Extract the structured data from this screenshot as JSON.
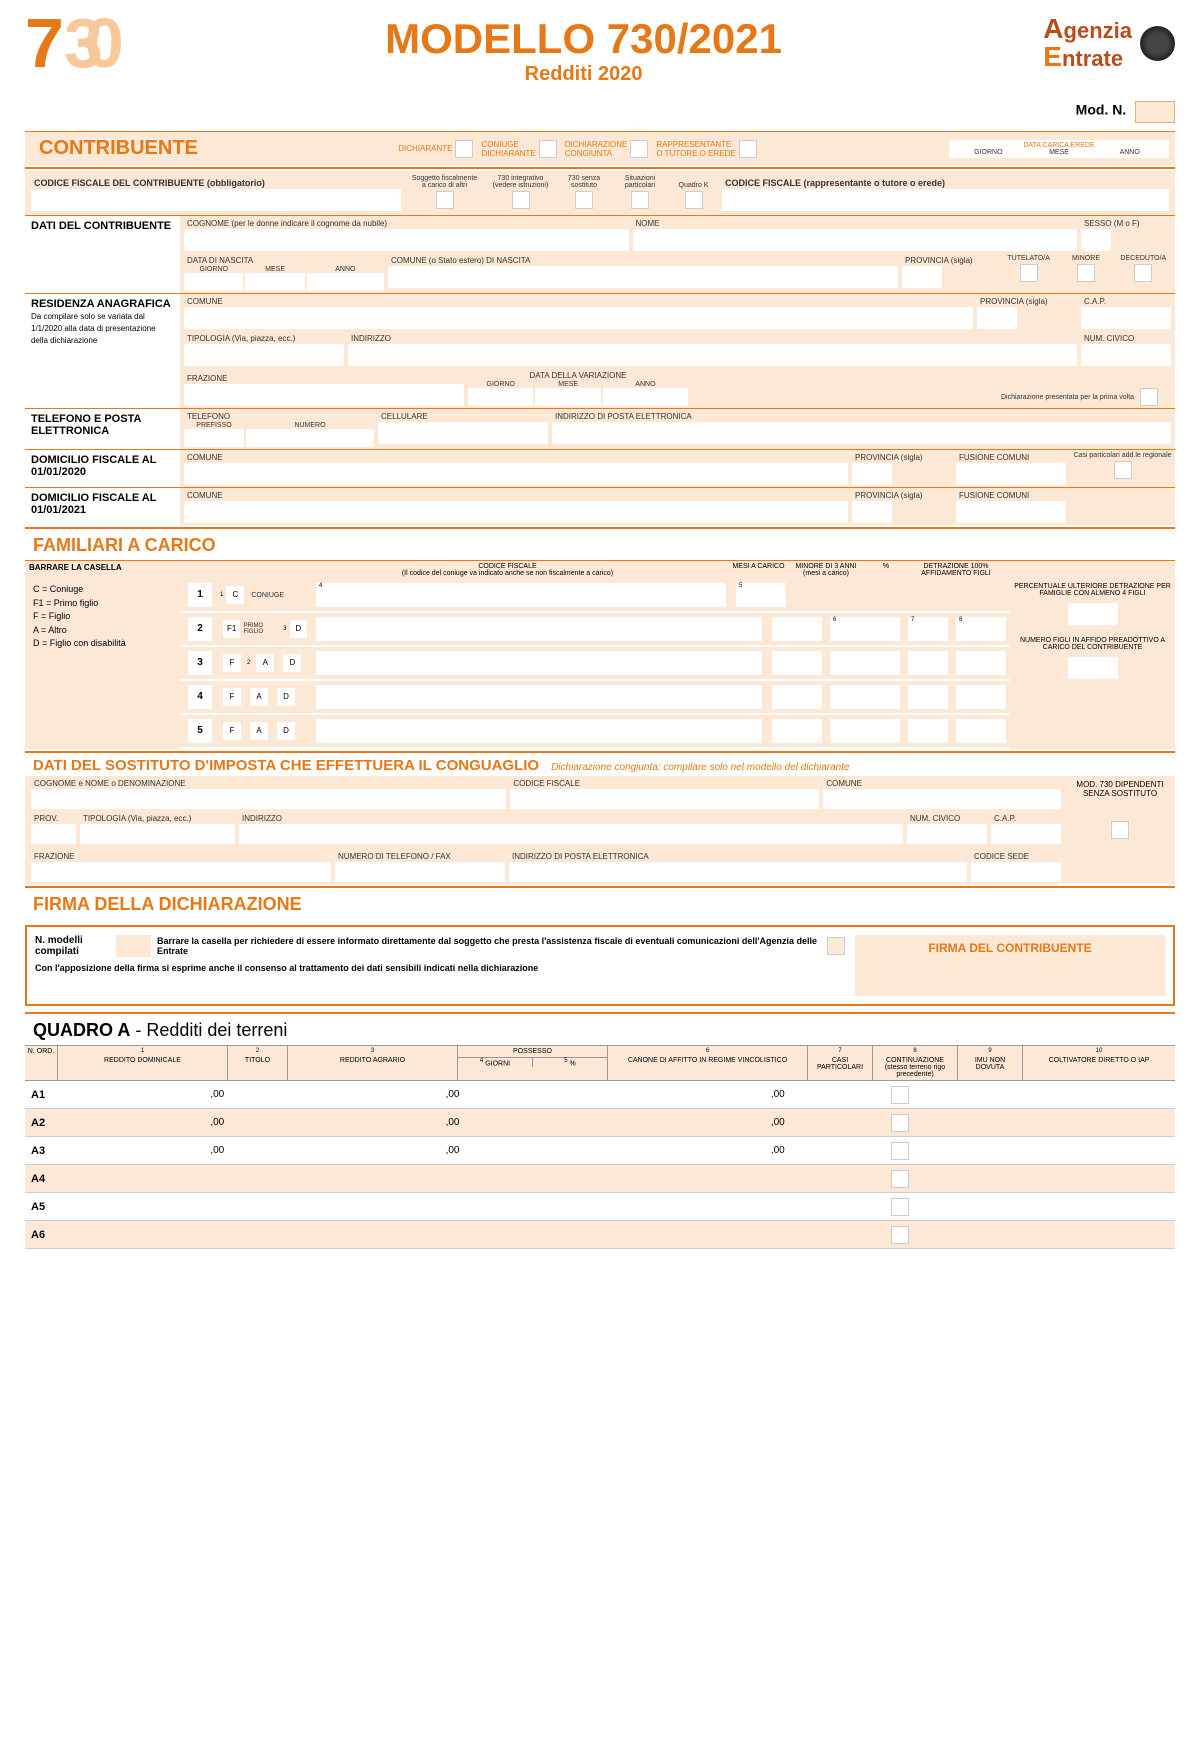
{
  "header": {
    "title": "MODELLO 730/2021",
    "subtitle": "Redditi 2020",
    "agenzia_line1": "genzia",
    "agenzia_line2": "ntrate",
    "modn_label": "Mod. N."
  },
  "contribuente": {
    "title": "CONTRIBUENTE",
    "opt1": "DICHIARANTE",
    "opt2a": "CONIUGE",
    "opt2b": "DICHIARANTE",
    "opt3a": "DICHIARAZIONE",
    "opt3b": "CONGIUNTA",
    "opt4a": "RAPPRESENTANTE",
    "opt4b": "O TUTORE O EREDE",
    "erede_title": "DATA CARICA EREDE",
    "erede_g": "GIORNO",
    "erede_m": "MESE",
    "erede_a": "ANNO"
  },
  "cf_row": {
    "label": "CODICE FISCALE DEL CONTRIBUENTE (obbligatorio)",
    "h1a": "Soggetto fiscalmente",
    "h1b": "a carico di altri",
    "h2a": "730 integrativo",
    "h2b": "(vedere istruzioni)",
    "h3a": "730 senza",
    "h3b": "sostituto",
    "h4a": "Situazioni",
    "h4b": "particolari",
    "h5": "Quadro K",
    "cf2": "CODICE FISCALE (rappresentante o tutore o erede)"
  },
  "dati": {
    "title": "DATI DEL CONTRIBUENTE",
    "cognome": "COGNOME (per le donne indicare il cognome da nubile)",
    "nome": "NOME",
    "sesso": "SESSO (M o F)",
    "nascita": "DATA DI NASCITA",
    "giorno": "GIORNO",
    "mese": "MESE",
    "anno": "ANNO",
    "comune_nascita": "COMUNE (o Stato estero) DI NASCITA",
    "provincia": "PROVINCIA (sigla)",
    "tutelato": "TUTELATO/A",
    "minore": "MINORE",
    "deceduto": "DECEDUTO/A"
  },
  "residenza": {
    "title": "RESIDENZA ANAGRAFICA",
    "sub": "Da compilare solo se variata dal 1/1/2020 alla data di presentazione della dichiarazione",
    "comune": "COMUNE",
    "prov": "PROVINCIA (sigla)",
    "cap": "C.A.P.",
    "tipologia": "TIPOLOGIA (Via, piazza, ecc.)",
    "indirizzo": "INDIRIZZO",
    "civico": "NUM. CIVICO",
    "frazione": "FRAZIONE",
    "variazione": "DATA DELLA VARIAZIONE",
    "prima_volta": "Dichiarazione presentata per la prima volta"
  },
  "telefono_title": "TELEFONO E POSTA ELETTRONICA",
  "telefono": "TELEFONO",
  "prefisso": "PREFISSO",
  "numero": "NUMERO",
  "cellulare": "CELLULARE",
  "email": "INDIRIZZO DI POSTA ELETTRONICA",
  "dom1": "DOMICILIO FISCALE AL 01/01/2020",
  "dom2": "DOMICILIO FISCALE AL 01/01/2021",
  "fusione": "FUSIONE COMUNI",
  "casi_part": "Casi particolari add.le regionale",
  "familiari": {
    "title": "FAMILIARI A CARICO",
    "barrare": "BARRARE LA CASELLA",
    "legend_c": "C  = Coniuge",
    "legend_f1": "F1 = Primo figlio",
    "legend_f": "F  = Figlio",
    "legend_a": "A  = Altro",
    "legend_d": "D  = Figlio con disabilità",
    "h_cf": "CODICE FISCALE",
    "h_cf_sub": "(Il codice del coniuge va indicato anche se non fiscalmente a carico)",
    "h_mesi": "MESI A CARICO",
    "h_minore": "MINORE DI 3 ANNI",
    "h_minore_sub": "(mesi a carico)",
    "h_pct": "%",
    "h_detr": "DETRAZIONE 100% AFFIDAMENTO FIGLI",
    "coniuge": "CONIUGE",
    "primo_figlio": "PRIMO FIGLIO",
    "side1": "PERCENTUALE ULTERIORE DETRAZIONE PER FAMIGLIE CON ALMENO 4 FIGLI",
    "side2": "NUMERO FIGLI IN AFFIDO PREADOTTIVO A CARICO DEL CONTRIBUENTE"
  },
  "sostituto": {
    "title": "DATI DEL SOSTITUTO D'IMPOSTA CHE EFFETTUERA IL CONGUAGLIO",
    "subtitle": "Dichiarazione congiunta: compilare solo nel modello del dichiarante",
    "cognome": "COGNOME e NOME o DENOMINAZIONE",
    "cf": "CODICE FISCALE",
    "comune": "COMUNE",
    "prov": "PROV.",
    "tipologia": "TIPOLOGIA (Via, piazza, ecc.)",
    "indirizzo": "INDIRIZZO",
    "civico": "NUM. CIVICO",
    "cap": "C.A.P.",
    "senza": "MOD. 730 DIPENDENTI SENZA SOSTITUTO",
    "frazione": "FRAZIONE",
    "telfax": "NUMERO DI TELEFONO / FAX",
    "email": "INDIRIZZO DI POSTA ELETTRONICA",
    "sede": "CODICE SEDE"
  },
  "firma": {
    "title": "FIRMA DELLA DICHIARAZIONE",
    "nmod": "N. modelli compilati",
    "text1": "Barrare la casella per richiedere di essere informato direttamente dal soggetto che presta l'assistenza fiscale di eventuali comunicazioni dell'Agenzia delle Entrate",
    "text2": "Con l'apposizione della firma si esprime anche il consenso al trattamento dei dati sensibili indicati nella dichiarazione",
    "sign": "FIRMA DEL CONTRIBUENTE"
  },
  "quadroA": {
    "title": "QUADRO A",
    "subtitle": " - Redditi dei terreni",
    "h_ord": "N. ORD.",
    "h1": "REDDITO DOMINICALE",
    "h2": "TITOLO",
    "h3": "REDDITO AGRARIO",
    "h_poss": "POSSESSO",
    "h4": "GIORNI",
    "h5": "%",
    "h6": "CANONE DI AFFITTO IN REGIME VINCOLISTICO",
    "h7": "CASI PARTICOLARI",
    "h8a": "CONTINUAZIONE",
    "h8b": "(stesso terreno rigo precedente)",
    "h9": "IMU NON DOVUTA",
    "h10": "COLTIVATORE DIRETTO O IAP",
    "rows": [
      "A1",
      "A2",
      "A3",
      "A4",
      "A5",
      "A6"
    ],
    "zero": ",00"
  }
}
